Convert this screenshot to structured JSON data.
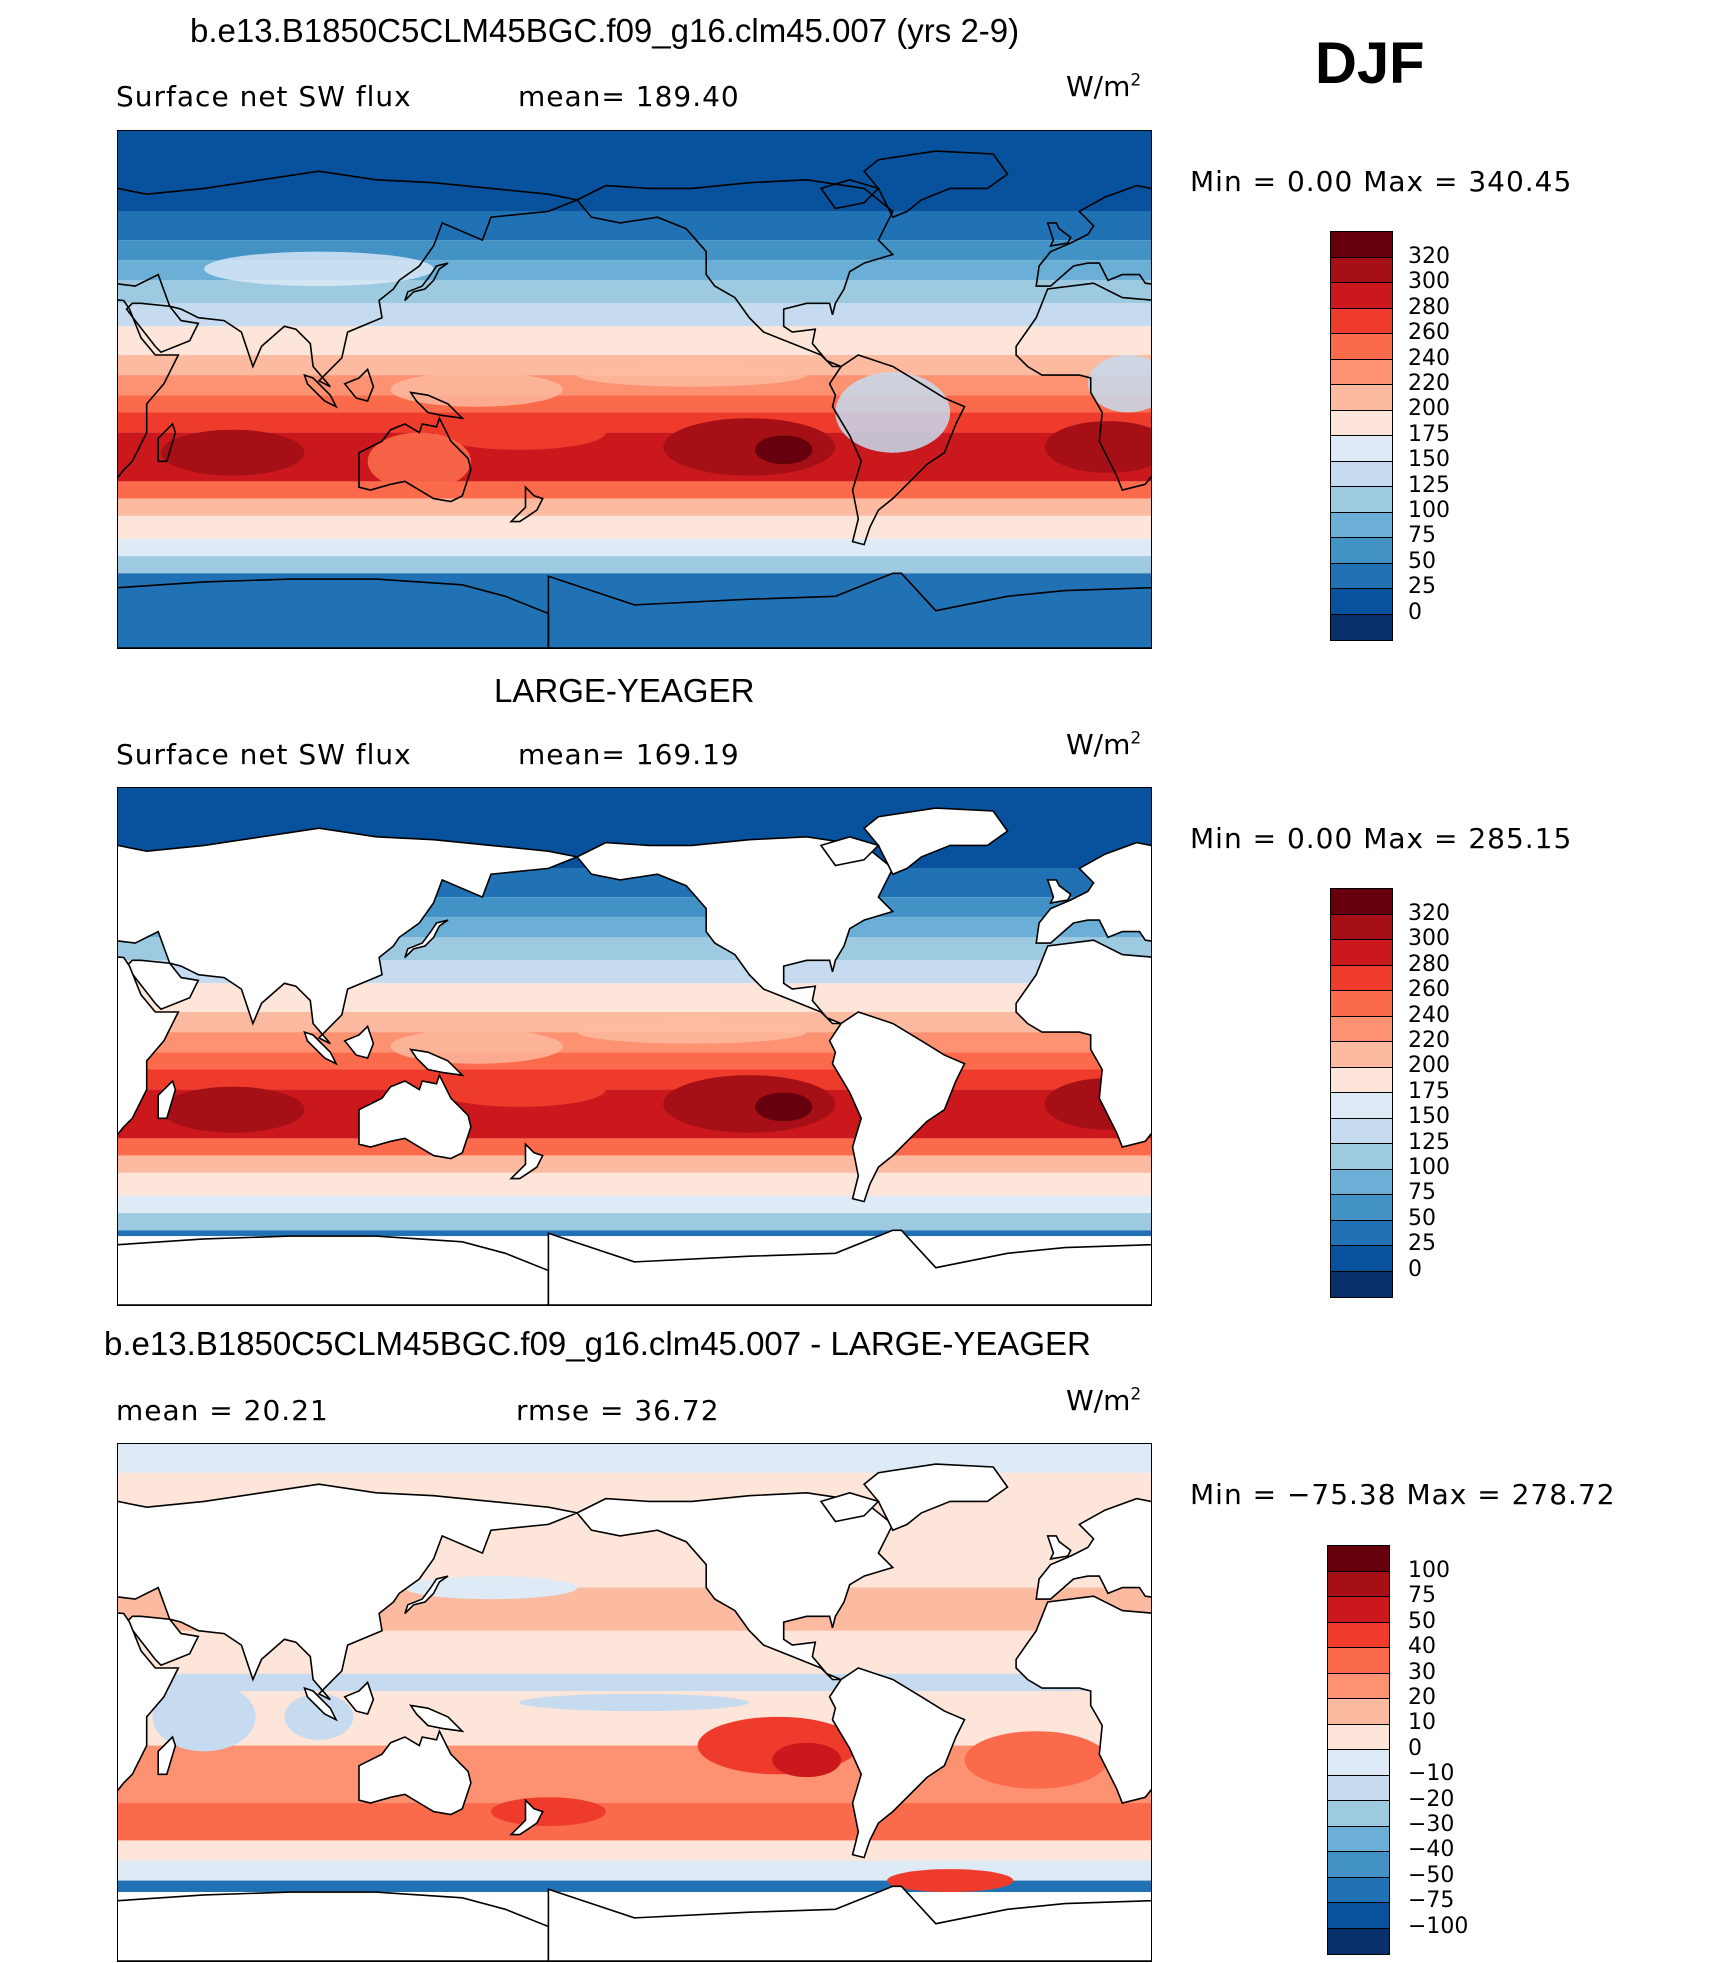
{
  "season": "DJF",
  "panels": [
    {
      "title": "b.e13.B1850C5CLM45BGC.f09_g16.clm45.007 (yrs 2-9)",
      "left_label": "Surface net SW flux",
      "mid_label": "mean=  189.40",
      "units": "W/m",
      "units_sup": "2",
      "minmax": "Min  =    0.00  Max  =  340.45",
      "colorbar_labels": [
        "320",
        "300",
        "280",
        "260",
        "240",
        "220",
        "200",
        "175",
        "150",
        "125",
        "100",
        "75",
        "50",
        "25",
        "0"
      ],
      "land_masked": false
    },
    {
      "title": "LARGE-YEAGER",
      "left_label": "Surface net SW flux",
      "mid_label": "mean=  169.19",
      "units": "W/m",
      "units_sup": "2",
      "minmax": "Min  =    0.00  Max  =  285.15",
      "colorbar_labels": [
        "320",
        "300",
        "280",
        "260",
        "240",
        "220",
        "200",
        "175",
        "150",
        "125",
        "100",
        "75",
        "50",
        "25",
        "0"
      ],
      "land_masked": true
    },
    {
      "title": "b.e13.B1850C5CLM45BGC.f09_g16.clm45.007 - LARGE-YEAGER",
      "left_label": "mean  =   20.21",
      "mid_label": "rmse  =   36.72",
      "units": "W/m",
      "units_sup": "2",
      "minmax": "Min  = −75.38  Max  =  278.72",
      "colorbar_labels": [
        "100",
        "75",
        "50",
        "40",
        "30",
        "20",
        "10",
        "0",
        "−10",
        "−20",
        "−30",
        "−40",
        "−50",
        "−75",
        "−100"
      ],
      "land_masked": true
    }
  ],
  "colorbar_colors": [
    "#67000d",
    "#a50f15",
    "#cb181d",
    "#ef3b2c",
    "#fb6a4a",
    "#fc9272",
    "#fcbba1",
    "#fee5d9",
    "#deebf7",
    "#c6dbef",
    "#9ecae1",
    "#6baed6",
    "#4292c6",
    "#2171b5",
    "#08519c",
    "#08306b"
  ]
}
